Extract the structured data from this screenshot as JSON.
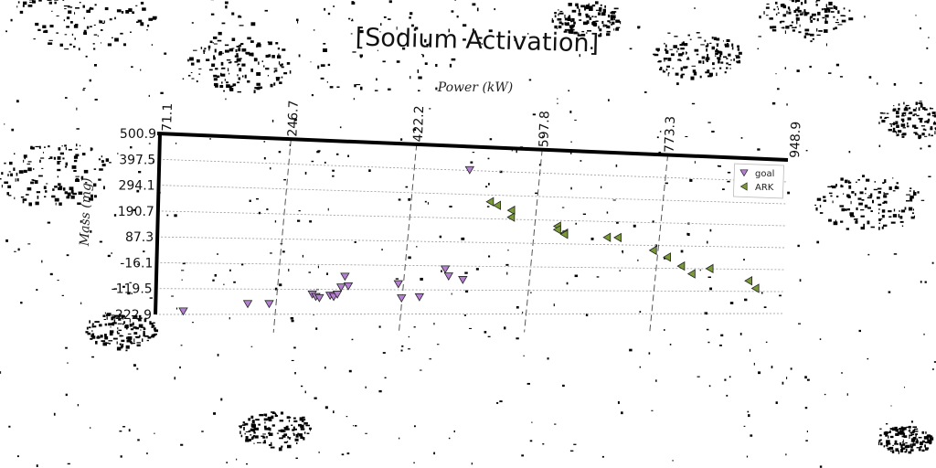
{
  "chart_data": {
    "type": "scatter",
    "title": "[Sodium Activation]",
    "xlabel": "Power (kW)",
    "ylabel": "Mass (mg)",
    "xlim": [
      71.1,
      948.9
    ],
    "ylim": [
      -222.9,
      500.9
    ],
    "x_ticks": [
      "71.1",
      "246.7",
      "422.2",
      "597.8",
      "773.3",
      "948.9"
    ],
    "y_ticks": [
      "500.9",
      "397.5",
      "294.1",
      "190.7",
      "87.3",
      "-16.1",
      "-119.5",
      "-222.9"
    ],
    "grid": true,
    "legend_position": "top-right",
    "series": [
      {
        "name": "goal",
        "marker": "triangle-down",
        "color": "#b57fd1",
        "points": [
          [
            110,
            -210
          ],
          [
            200,
            -180
          ],
          [
            230,
            -180
          ],
          [
            290,
            -140
          ],
          [
            295,
            -150
          ],
          [
            300,
            -155
          ],
          [
            315,
            -145
          ],
          [
            320,
            -150
          ],
          [
            325,
            -140
          ],
          [
            330,
            -110
          ],
          [
            335,
            -65
          ],
          [
            340,
            -105
          ],
          [
            410,
            -95
          ],
          [
            415,
            -155
          ],
          [
            440,
            -150
          ],
          [
            475,
            -30
          ],
          [
            480,
            -60
          ],
          [
            500,
            -75
          ],
          [
            505,
            400
          ]
        ]
      },
      {
        "name": "ARK",
        "color": "#7a9a35",
        "marker": "triangle-left",
        "points": [
          [
            535,
            265
          ],
          [
            545,
            250
          ],
          [
            565,
            230
          ],
          [
            565,
            200
          ],
          [
            630,
            165
          ],
          [
            630,
            150
          ],
          [
            640,
            135
          ],
          [
            640,
            130
          ],
          [
            700,
            120
          ],
          [
            715,
            120
          ],
          [
            765,
            65
          ],
          [
            785,
            35
          ],
          [
            805,
            -5
          ],
          [
            820,
            -40
          ],
          [
            845,
            -15
          ],
          [
            900,
            -70
          ],
          [
            910,
            -105
          ]
        ]
      }
    ]
  }
}
